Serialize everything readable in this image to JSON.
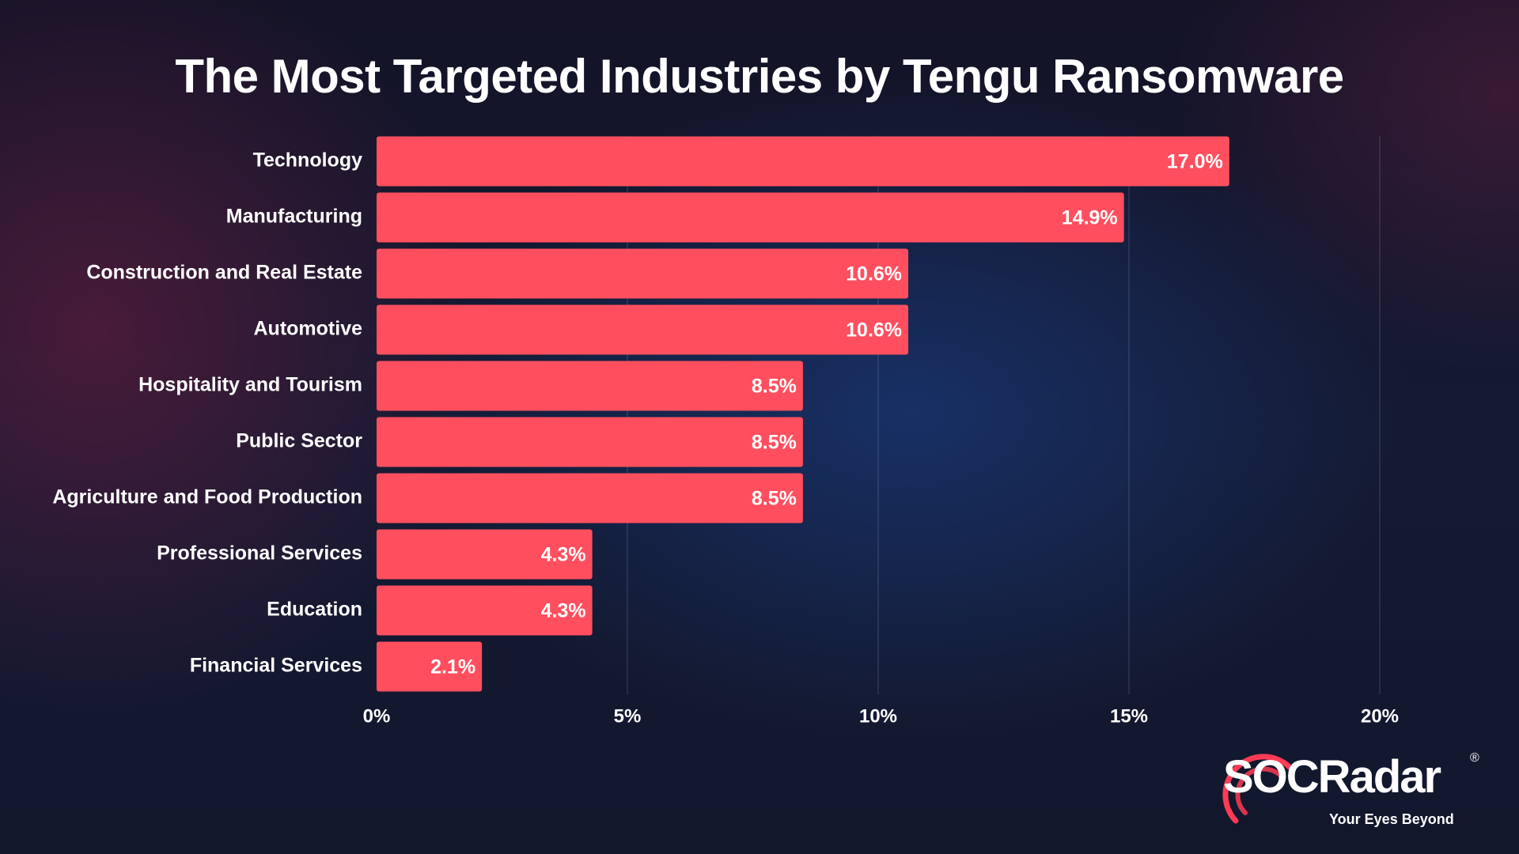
{
  "chart_data": {
    "type": "bar",
    "orientation": "horizontal",
    "title": "The Most Targeted Industries by Tengu Ransomware",
    "categories": [
      "Technology",
      "Manufacturing",
      "Construction and Real Estate",
      "Automotive",
      "Hospitality and Tourism",
      "Public Sector",
      "Agriculture and Food Production",
      "Professional Services",
      "Education",
      "Financial Services"
    ],
    "values": [
      17.0,
      14.9,
      10.6,
      10.6,
      8.5,
      8.5,
      8.5,
      4.3,
      4.3,
      2.1
    ],
    "value_labels": [
      "17.0%",
      "14.9%",
      "10.6%",
      "10.6%",
      "8.5%",
      "8.5%",
      "8.5%",
      "4.3%",
      "4.3%",
      "2.1%"
    ],
    "xticks": [
      0,
      5,
      10,
      15,
      20
    ],
    "xtick_labels": [
      "0%",
      "5%",
      "10%",
      "15%",
      "20%"
    ],
    "xlim": [
      0,
      20
    ],
    "grid": "vertical",
    "bar_color": "#ff4f5e"
  },
  "branding": {
    "logo_text": "SOCRadar",
    "registered_mark": "®",
    "tagline": "Your Eyes Beyond",
    "logo_accent_color": "#ff3b55"
  }
}
